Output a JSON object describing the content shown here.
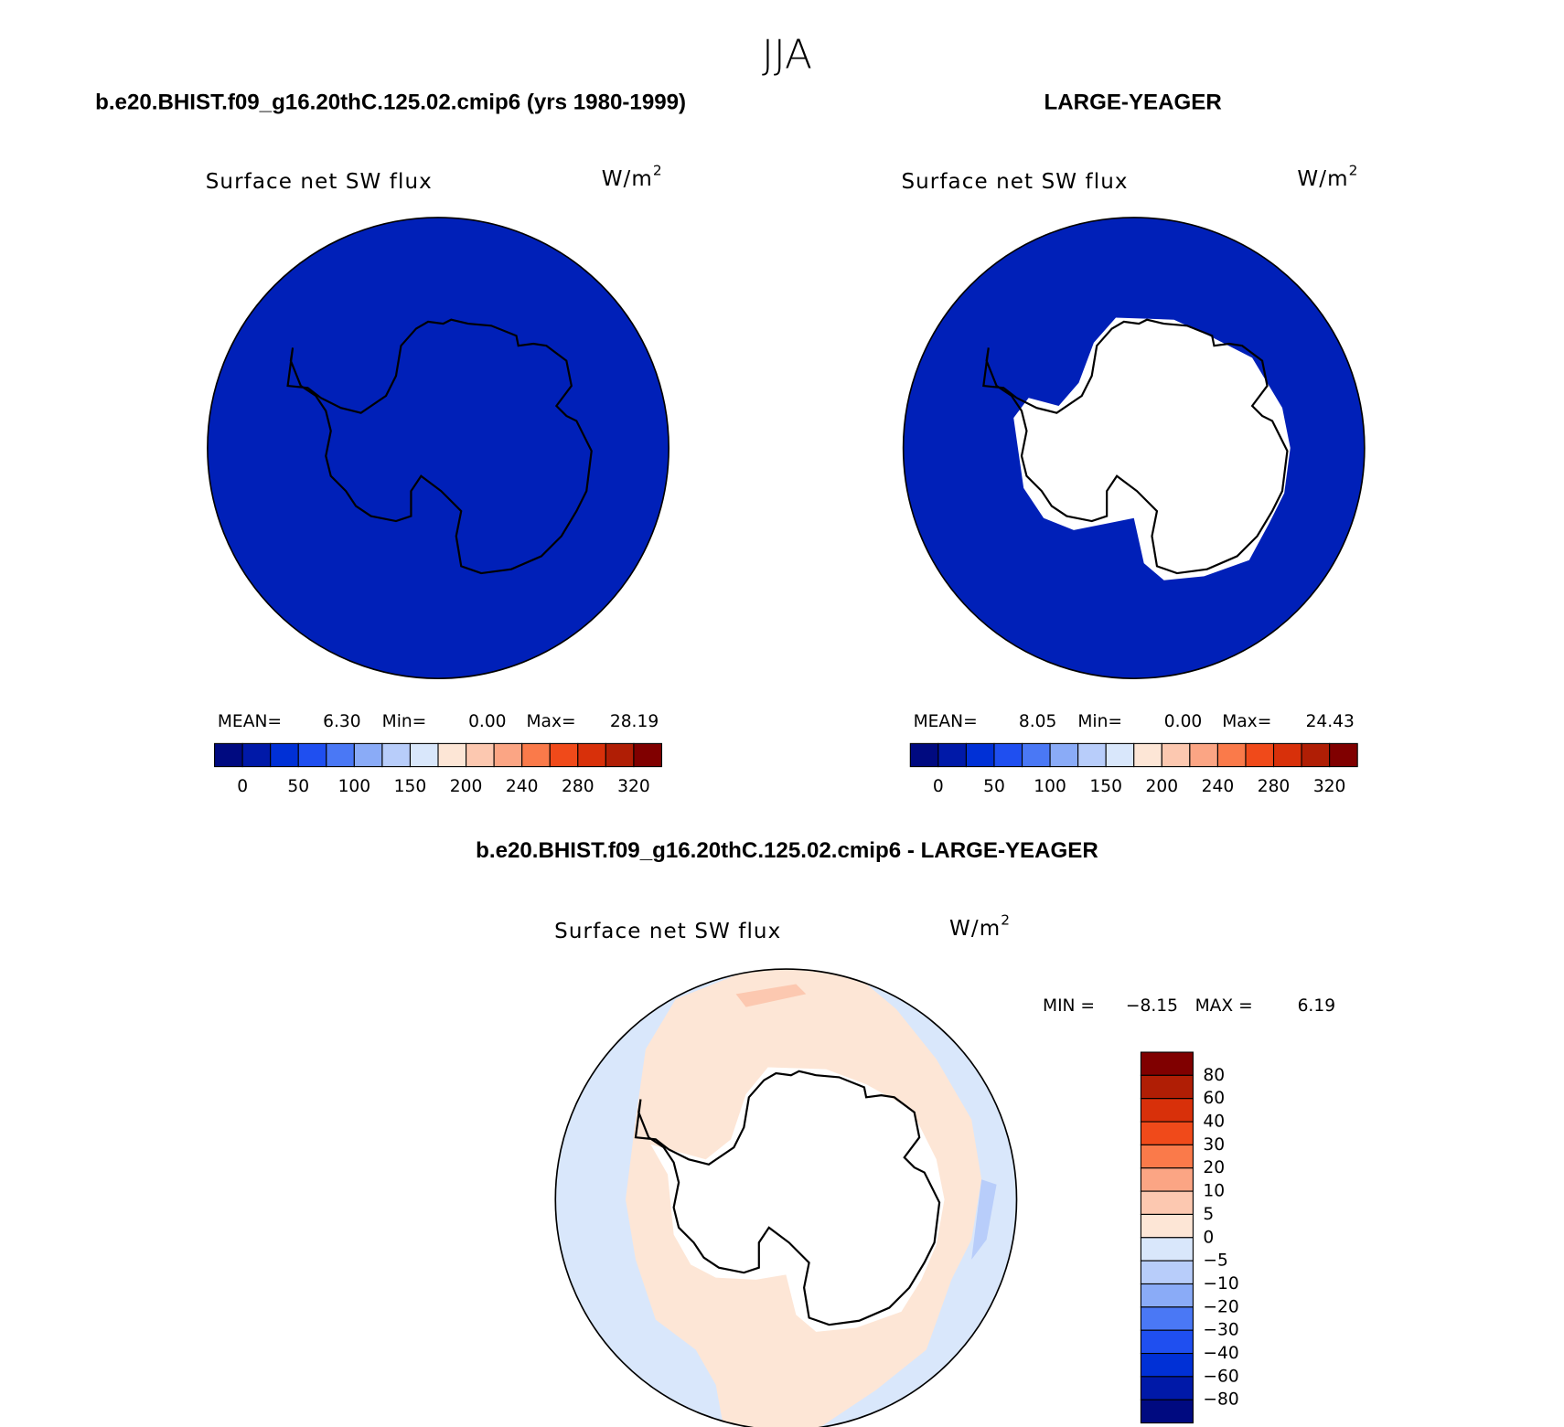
{
  "title": "JJA",
  "panels": [
    {
      "header": "b.e20.BHIST.f09_g16.20thC.125.02.cmip6 (yrs 1980-1999)",
      "field": "Surface net SW flux",
      "units": "W/m",
      "units_exp": "2",
      "stats": [
        {
          "name": "MEAN=",
          "value": "6.30"
        },
        {
          "name": "Min=",
          "value": "0.00"
        },
        {
          "name": "Max=",
          "value": "28.19"
        }
      ]
    },
    {
      "header": "LARGE-YEAGER",
      "field": "Surface net SW flux",
      "units": "W/m",
      "units_exp": "2",
      "stats": [
        {
          "name": "MEAN=",
          "value": "8.05"
        },
        {
          "name": "Min=",
          "value": "0.00"
        },
        {
          "name": "Max=",
          "value": "24.43"
        }
      ]
    }
  ],
  "colorbar": {
    "colors": [
      "#000a80",
      "#0019a8",
      "#0030d6",
      "#1f4ff0",
      "#4a78f5",
      "#8aabf7",
      "#b8cdfa",
      "#d9e7fb",
      "#fde6d6",
      "#fcc8b0",
      "#fba584",
      "#fa7a4a",
      "#f04a1a",
      "#d8300a",
      "#b01e05",
      "#800000"
    ],
    "labels": [
      "0",
      "50",
      "100",
      "150",
      "200",
      "240",
      "280",
      "320"
    ]
  },
  "difference": {
    "header": "b.e20.BHIST.f09_g16.20thC.125.02.cmip6 - LARGE-YEAGER",
    "field": "Surface net SW flux",
    "units": "W/m",
    "units_exp": "2",
    "stats": [
      {
        "name": "MIN =",
        "value": "−8.15"
      },
      {
        "name": "MAX =",
        "value": "6.19"
      }
    ],
    "colorbar": {
      "colors": [
        "#800000",
        "#b01e05",
        "#d8300a",
        "#f04a1a",
        "#fa7a4a",
        "#fba584",
        "#fcc8b0",
        "#fde6d6",
        "#d9e7fb",
        "#b8cdfa",
        "#8aabf7",
        "#4a78f5",
        "#1f4ff0",
        "#0030d6",
        "#0019a8",
        "#000a80"
      ],
      "labels": [
        "80",
        "60",
        "40",
        "30",
        "20",
        "10",
        "5",
        "0",
        "−5",
        "−10",
        "−20",
        "−30",
        "−40",
        "−60",
        "−80"
      ]
    }
  }
}
